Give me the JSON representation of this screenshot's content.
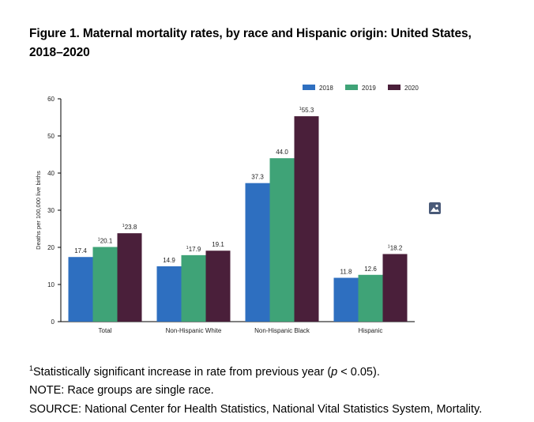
{
  "figure": {
    "title": "Figure 1. Maternal mortality rates, by race and Hispanic origin: United States, 2018–2020"
  },
  "chart_data": {
    "type": "bar",
    "title": "Figure 1. Maternal mortality rates, by race and Hispanic origin: United States, 2018–2020",
    "ylabel": "Deaths per 100,000 live births",
    "xlabel": "",
    "ylim": [
      0,
      60
    ],
    "yticks": [
      0,
      10,
      20,
      30,
      40,
      50,
      60
    ],
    "categories": [
      "Total",
      "Non-Hispanic White",
      "Non-Hispanic Black",
      "Hispanic"
    ],
    "series": [
      {
        "name": "2018",
        "color": "#2e6fc0",
        "values": [
          17.4,
          14.9,
          37.3,
          11.8
        ],
        "labels": [
          "17.4",
          "14.9",
          "37.3",
          "11.8"
        ],
        "superscript": [
          false,
          false,
          false,
          false
        ]
      },
      {
        "name": "2019",
        "color": "#3fa377",
        "values": [
          20.1,
          17.9,
          44.0,
          12.6
        ],
        "labels": [
          "20.1",
          "17.9",
          "44.0",
          "12.6"
        ],
        "superscript": [
          true,
          true,
          false,
          false
        ]
      },
      {
        "name": "2020",
        "color": "#4a1f3a",
        "values": [
          23.8,
          19.1,
          55.3,
          18.2
        ],
        "labels": [
          "23.8",
          "19.1",
          "55.3",
          "18.2"
        ],
        "superscript": [
          true,
          false,
          true,
          true
        ]
      }
    ],
    "legend_position": "top-right",
    "superscript_mark": "1",
    "grid": false
  },
  "notes": {
    "footnote_mark": "1",
    "footnote_pre": "Statistically significant increase in rate from previous year (",
    "footnote_p": "p",
    "footnote_post": " < 0.05).",
    "note": "NOTE: Race groups are single race.",
    "source": "SOURCE: National Center for Health Statistics, National Vital Statistics System, Mortality."
  },
  "icons": {
    "image": "image-icon"
  }
}
